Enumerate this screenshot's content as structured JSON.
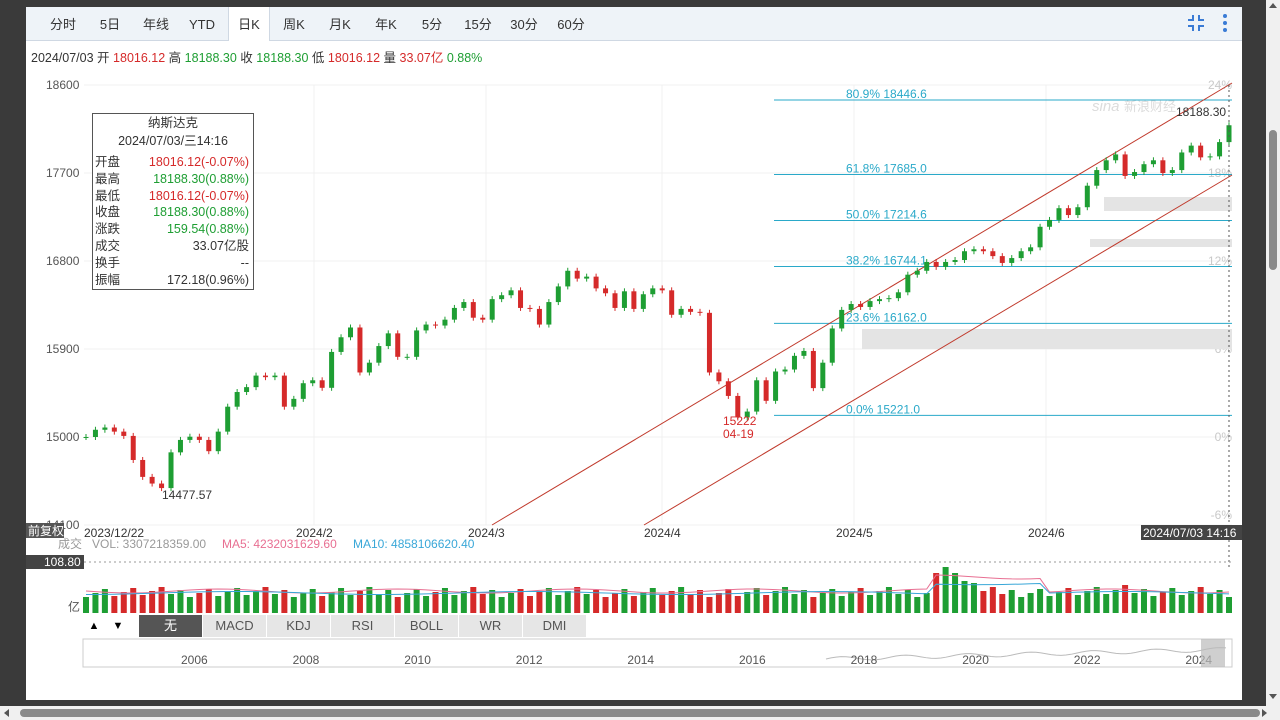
{
  "tabs": [
    "分时",
    "5日",
    "年线",
    "YTD",
    "日K",
    "周K",
    "月K",
    "年K",
    "5分",
    "15分",
    "30分",
    "60分"
  ],
  "active_tab": "日K",
  "ohlc": {
    "date": "2024/07/03",
    "open_label": "开",
    "open": "18016.12",
    "high_label": "高",
    "high": "18188.30",
    "close_label": "收",
    "close": "18188.30",
    "low_label": "低",
    "low": "18016.12",
    "vol_label": "量",
    "vol": "33.07亿",
    "pct": "0.88%"
  },
  "tooltip": {
    "title": "纳斯达克",
    "datetime": "2024/07/03/三14:16",
    "rows": [
      {
        "k": "开盘",
        "v": "18016.12(-0.07%)",
        "c": "red"
      },
      {
        "k": "最高",
        "v": "18188.30(0.88%)",
        "c": "green"
      },
      {
        "k": "最低",
        "v": "18016.12(-0.07%)",
        "c": "red"
      },
      {
        "k": "收盘",
        "v": "18188.30(0.88%)",
        "c": "green"
      },
      {
        "k": "涨跌",
        "v": "159.54(0.88%)",
        "c": "green"
      },
      {
        "k": "成交",
        "v": "33.07亿股",
        "c": "dark"
      },
      {
        "k": "换手",
        "v": "--",
        "c": "dark"
      },
      {
        "k": "振幅",
        "v": "172.18(0.96%)",
        "c": "dark"
      }
    ]
  },
  "price_axis": [
    "18600",
    "17700",
    "16800",
    "15900",
    "15000",
    "14100"
  ],
  "pct_axis": [
    "24%",
    "18%",
    "12%",
    "6%",
    "0%",
    "-6%"
  ],
  "date_axis": [
    "2023/12/22",
    "2024/2",
    "2024/3",
    "2024/4",
    "2024/5",
    "2024/6"
  ],
  "crosshair_label": "2024/07/03 14:16",
  "last_price": "18188.30",
  "low_annot": "14477.57",
  "swing_low": {
    "value": "15222",
    "date": "04-19"
  },
  "fib": [
    "80.9% 18446.6",
    "61.8% 17685.0",
    "50.0% 17214.6",
    "38.2% 16744.1",
    "23.6% 16162.0",
    "0.0% 15221.0"
  ],
  "watermark": "新浪财经",
  "adj_label": "前复权",
  "vol_line": {
    "title": "成交",
    "vol": "VOL: 3307218359.00",
    "ma5": "MA5: 4232031629.60",
    "ma10": "MA10: 4858106620.40"
  },
  "vol_scale": {
    "top": "108.80",
    "unit": "亿"
  },
  "indicator_tabs": [
    "无",
    "MACD",
    "KDJ",
    "RSI",
    "BOLL",
    "WR",
    "DMI"
  ],
  "nav_years": [
    "2006",
    "2008",
    "2010",
    "2012",
    "2014",
    "2016",
    "2018",
    "2020",
    "2022",
    "2024"
  ],
  "nav_arrows": {
    "up": "▲",
    "down": "▼"
  },
  "icons": {
    "collapse": "collapse-icon",
    "more": "more-vertical-icon"
  },
  "colors": {
    "up": "#1e9e33",
    "down": "#d52a2a",
    "fib": "#2aa9c9",
    "channel": "#c0392b",
    "ma5": "#e86f92",
    "ma10": "#39a7d8"
  },
  "chart_data": {
    "type": "candlestick",
    "title": "纳斯达克",
    "ylim": [
      14100,
      18600
    ],
    "x_range": [
      "2023/12/22",
      "2024/07/03"
    ],
    "series": [
      {
        "name": "close",
        "values": [
          15000,
          15074,
          15097,
          15055,
          15011,
          14765,
          14592,
          14524,
          14477.57,
          14843,
          14970,
          15003,
          14970,
          14855,
          15055,
          15310,
          15460,
          15510,
          15628,
          15612,
          15628,
          15310,
          15390,
          15550,
          15580,
          15503,
          15870,
          16020,
          16120,
          15660,
          15760,
          15930,
          16060,
          15820,
          15820,
          16090,
          16150,
          16140,
          16200,
          16320,
          16380,
          16220,
          16200,
          16410,
          16450,
          16500,
          16320,
          16310,
          16150,
          16380,
          16540,
          16700,
          16620,
          16640,
          16520,
          16470,
          16320,
          16490,
          16310,
          16460,
          16520,
          16500,
          16250,
          16310,
          16280,
          16270,
          15660,
          15570,
          15420,
          15200,
          15260,
          15580,
          15370,
          15670,
          15690,
          15830,
          15880,
          15500,
          15760,
          16110,
          16300,
          16360,
          16330,
          16390,
          16410,
          16420,
          16480,
          16660,
          16700,
          16790,
          16740,
          16790,
          16810,
          16900,
          16920,
          16900,
          16850,
          16780,
          16830,
          16900,
          16940,
          17150,
          17220,
          17340,
          17270,
          17350,
          17570,
          17730,
          17830,
          17890,
          17670,
          17710,
          17790,
          17830,
          17700,
          17730,
          17910,
          17980,
          17860,
          17870,
          18016,
          18188.3
        ]
      }
    ],
    "fib_levels": [
      {
        "pct": "80.9%",
        "value": 18446.6
      },
      {
        "pct": "61.8%",
        "value": 17685.0
      },
      {
        "pct": "50.0%",
        "value": 17214.6
      },
      {
        "pct": "38.2%",
        "value": 16744.1
      },
      {
        "pct": "23.6%",
        "value": 16162.0
      },
      {
        "pct": "0.0%",
        "value": 15221.0
      }
    ],
    "annotations": [
      {
        "label": "14477.57",
        "date": "2024/01"
      },
      {
        "label": "15222",
        "date": "04-19"
      },
      {
        "label": "18188.30",
        "date": "2024/07/03"
      }
    ]
  }
}
